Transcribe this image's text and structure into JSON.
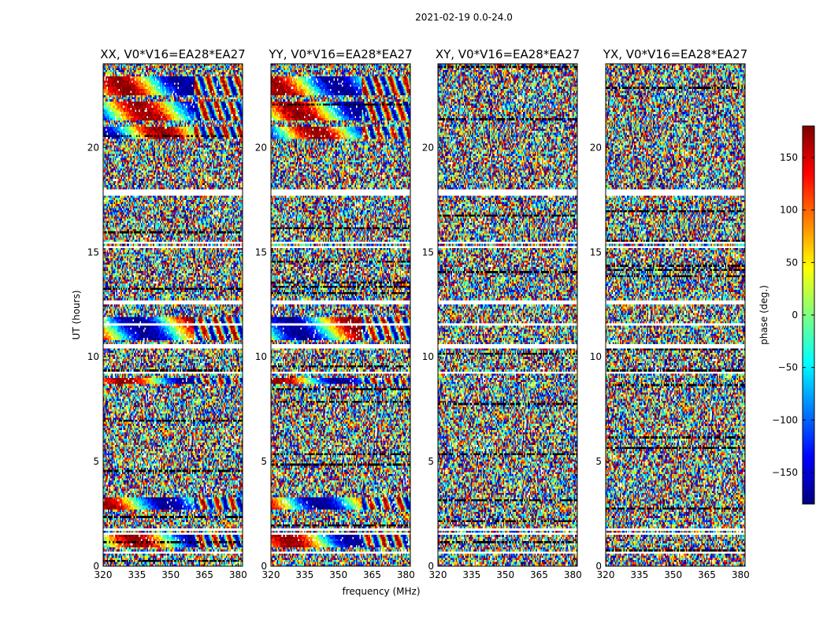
{
  "chart_data": {
    "type": "heatmap",
    "title": "2021-02-19 0.0-24.0",
    "xlabel": "frequency (MHz)",
    "ylabel": "UT (hours)",
    "xlim": [
      320,
      382
    ],
    "ylim": [
      0,
      24
    ],
    "xticks": [
      320,
      335,
      350,
      365,
      380
    ],
    "yticks": [
      0,
      5,
      10,
      15,
      20
    ],
    "panels": [
      {
        "name": "XX",
        "title": "XX, V0*V16=EA28*EA27",
        "coherence": "high"
      },
      {
        "name": "YY",
        "title": "YY, V0*V16=EA28*EA27",
        "coherence": "high"
      },
      {
        "name": "XY",
        "title": "XY, V0*V16=EA28*EA27",
        "coherence": "low"
      },
      {
        "name": "YX",
        "title": "YX, V0*V16=EA28*EA27",
        "coherence": "low"
      }
    ],
    "flagged_ut_bands": [
      [
        0.28,
        0.33
      ],
      [
        0.62,
        0.7
      ],
      [
        1.48,
        1.56
      ],
      [
        1.7,
        1.8
      ],
      [
        2.38,
        2.44
      ],
      [
        2.58,
        2.64
      ],
      [
        3.68,
        3.74
      ],
      [
        4.48,
        4.53
      ],
      [
        5.88,
        5.93
      ],
      [
        6.58,
        6.63
      ],
      [
        7.48,
        7.53
      ],
      [
        8.08,
        8.13
      ],
      [
        9.2,
        9.3
      ],
      [
        10.4,
        10.62
      ],
      [
        11.52,
        11.58
      ],
      [
        12.18,
        12.24
      ],
      [
        12.48,
        12.68
      ],
      [
        13.38,
        13.44
      ],
      [
        14.18,
        14.24
      ],
      [
        14.98,
        15.04
      ],
      [
        15.18,
        15.32
      ],
      [
        15.4,
        15.46
      ],
      [
        16.78,
        16.84
      ],
      [
        17.28,
        17.34
      ],
      [
        17.72,
        18.0
      ],
      [
        18.68,
        18.73
      ],
      [
        20.28,
        20.33
      ],
      [
        21.08,
        21.14
      ],
      [
        22.18,
        22.24
      ],
      [
        23.08,
        23.13
      ],
      [
        23.48,
        23.53
      ]
    ],
    "colorbar": {
      "label": "phase (deg.)",
      "range": [
        -180,
        180
      ],
      "ticks": [
        150,
        100,
        50,
        0,
        -50,
        -100,
        -150
      ],
      "tick_labels": [
        "150",
        "100",
        "50",
        "0",
        "−50",
        "−100",
        "−150"
      ],
      "colormap": [
        "#00007f",
        "#0000ff",
        "#007fff",
        "#00ffff",
        "#7fff7f",
        "#ffff00",
        "#ff7f00",
        "#ff0000",
        "#7f0000"
      ]
    }
  }
}
